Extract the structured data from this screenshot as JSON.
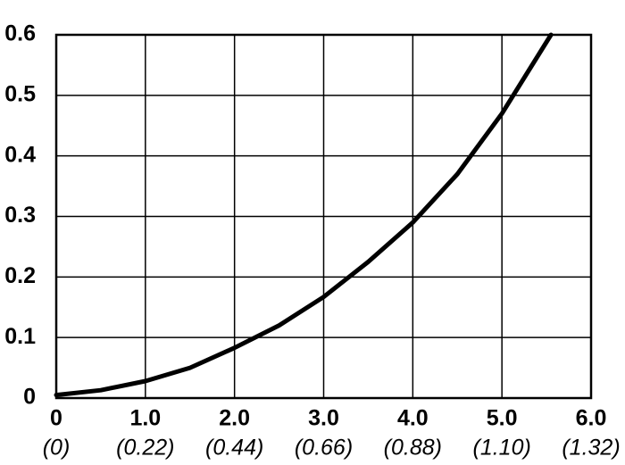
{
  "chart_data": {
    "type": "line",
    "x": [
      0,
      0.5,
      1,
      1.5,
      2,
      2.5,
      3,
      3.5,
      4,
      4.5,
      5,
      5.55
    ],
    "values": [
      0.005,
      0.013,
      0.028,
      0.05,
      0.083,
      0.12,
      0.167,
      0.225,
      0.29,
      0.37,
      0.47,
      0.6
    ],
    "color": "#000000",
    "xlim": [
      0,
      6
    ],
    "ylim": [
      0,
      0.6
    ],
    "xticks": [
      0,
      {
        "value": 1,
        "label": "1.0"
      },
      {
        "value": 2,
        "label": "2.0"
      },
      {
        "value": 3,
        "label": "3.0"
      },
      {
        "value": 4,
        "label": "4.0"
      },
      {
        "value": 5,
        "label": "5.0"
      },
      {
        "value": 6,
        "label": "6.0"
      }
    ],
    "x2ticks": [
      {
        "value": 0,
        "label": "(0)"
      },
      {
        "value": 1,
        "label": "(0.22)"
      },
      {
        "value": 2,
        "label": "(0.44)"
      },
      {
        "value": 3,
        "label": "(0.66)"
      },
      {
        "value": 4,
        "label": "(0.88)"
      },
      {
        "value": 5,
        "label": "(1.10)"
      },
      {
        "value": 6,
        "label": "(1.32)"
      }
    ],
    "yticks": [
      0,
      0.1,
      0.2,
      0.3,
      0.4,
      0.5,
      0.6
    ],
    "grid": true
  }
}
